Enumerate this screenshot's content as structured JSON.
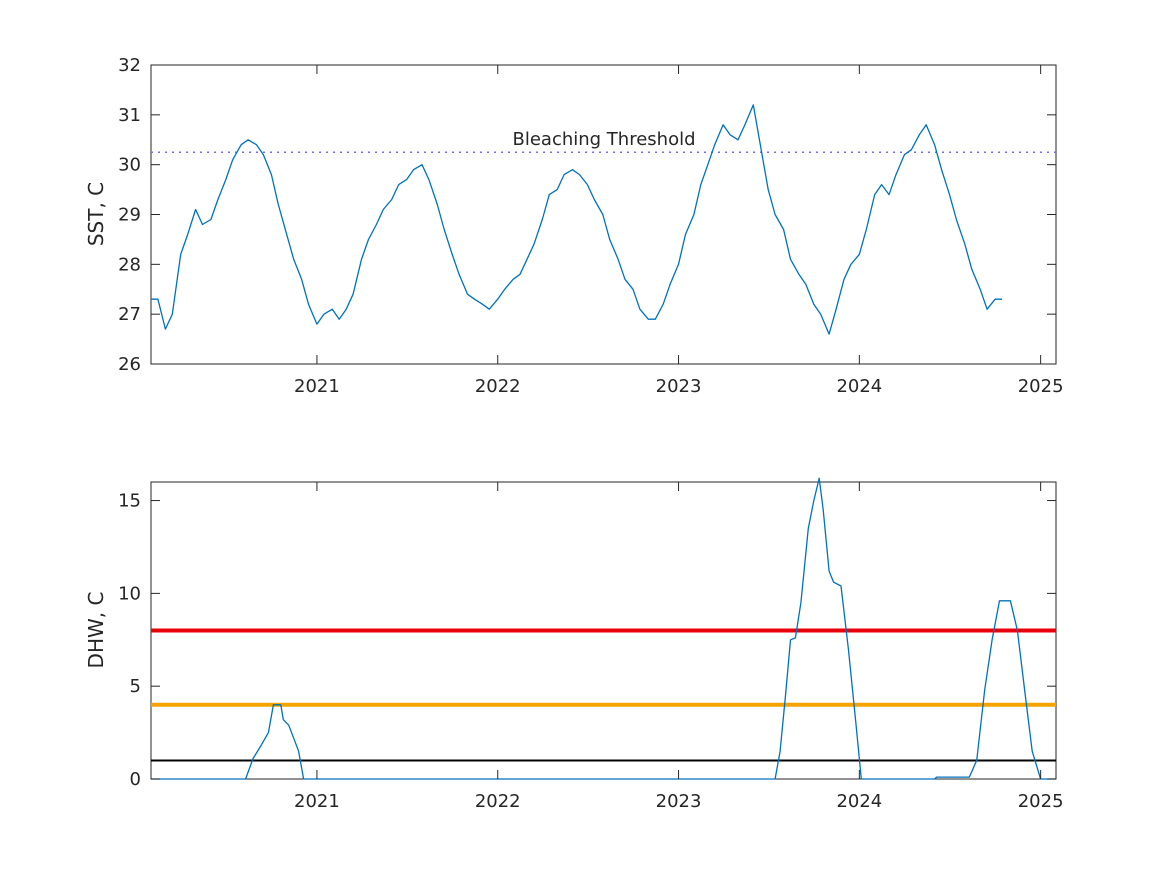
{
  "chart_data": [
    {
      "type": "line",
      "ylabel": "SST, C",
      "xlim": [
        "2020-02-01",
        "2025-02-01"
      ],
      "ylim": [
        26,
        32
      ],
      "yticks": [
        "26",
        "27",
        "28",
        "29",
        "30",
        "31",
        "32"
      ],
      "xticks": [
        "2021",
        "2022",
        "2023",
        "2024",
        "2025"
      ],
      "grid": false,
      "threshold": {
        "label": "Bleaching Threshold",
        "y": 30.25,
        "style": "dotted",
        "color": "#7b68ee"
      },
      "series": [
        {
          "color": "#0072bd",
          "points": [
            [
              "2020-02-01",
              27.3
            ],
            [
              "2020-02-15",
              27.3
            ],
            [
              "2020-03-01",
              26.7
            ],
            [
              "2020-03-15",
              27.0
            ],
            [
              "2020-04-01",
              28.2
            ],
            [
              "2020-04-15",
              28.6
            ],
            [
              "2020-05-01",
              29.1
            ],
            [
              "2020-05-15",
              28.8
            ],
            [
              "2020-06-01",
              28.9
            ],
            [
              "2020-06-15",
              29.3
            ],
            [
              "2020-07-01",
              29.7
            ],
            [
              "2020-07-15",
              30.1
            ],
            [
              "2020-08-01",
              30.4
            ],
            [
              "2020-08-15",
              30.5
            ],
            [
              "2020-09-01",
              30.4
            ],
            [
              "2020-09-15",
              30.2
            ],
            [
              "2020-10-01",
              29.8
            ],
            [
              "2020-10-15",
              29.2
            ],
            [
              "2020-11-01",
              28.6
            ],
            [
              "2020-11-15",
              28.1
            ],
            [
              "2020-12-01",
              27.7
            ],
            [
              "2020-12-15",
              27.2
            ],
            [
              "2021-01-01",
              26.8
            ],
            [
              "2021-01-15",
              27.0
            ],
            [
              "2021-02-01",
              27.1
            ],
            [
              "2021-02-15",
              26.9
            ],
            [
              "2021-03-01",
              27.1
            ],
            [
              "2021-03-15",
              27.4
            ],
            [
              "2021-04-01",
              28.1
            ],
            [
              "2021-04-15",
              28.5
            ],
            [
              "2021-05-01",
              28.8
            ],
            [
              "2021-05-15",
              29.1
            ],
            [
              "2021-06-01",
              29.3
            ],
            [
              "2021-06-15",
              29.6
            ],
            [
              "2021-07-01",
              29.7
            ],
            [
              "2021-07-15",
              29.9
            ],
            [
              "2021-08-01",
              30.0
            ],
            [
              "2021-08-15",
              29.7
            ],
            [
              "2021-09-01",
              29.2
            ],
            [
              "2021-09-15",
              28.7
            ],
            [
              "2021-10-01",
              28.2
            ],
            [
              "2021-10-15",
              27.8
            ],
            [
              "2021-11-01",
              27.4
            ],
            [
              "2021-11-15",
              27.3
            ],
            [
              "2021-12-01",
              27.2
            ],
            [
              "2021-12-15",
              27.1
            ],
            [
              "2022-01-01",
              27.3
            ],
            [
              "2022-01-15",
              27.5
            ],
            [
              "2022-02-01",
              27.7
            ],
            [
              "2022-02-15",
              27.8
            ],
            [
              "2022-03-01",
              28.1
            ],
            [
              "2022-03-15",
              28.4
            ],
            [
              "2022-04-01",
              28.9
            ],
            [
              "2022-04-15",
              29.4
            ],
            [
              "2022-05-01",
              29.5
            ],
            [
              "2022-05-15",
              29.8
            ],
            [
              "2022-06-01",
              29.9
            ],
            [
              "2022-06-15",
              29.8
            ],
            [
              "2022-07-01",
              29.6
            ],
            [
              "2022-07-15",
              29.3
            ],
            [
              "2022-08-01",
              29.0
            ],
            [
              "2022-08-15",
              28.5
            ],
            [
              "2022-09-01",
              28.1
            ],
            [
              "2022-09-15",
              27.7
            ],
            [
              "2022-10-01",
              27.5
            ],
            [
              "2022-10-15",
              27.1
            ],
            [
              "2022-11-01",
              26.9
            ],
            [
              "2022-11-15",
              26.9
            ],
            [
              "2022-12-01",
              27.2
            ],
            [
              "2022-12-15",
              27.6
            ],
            [
              "2023-01-01",
              28.0
            ],
            [
              "2023-01-15",
              28.6
            ],
            [
              "2023-02-01",
              29.0
            ],
            [
              "2023-02-15",
              29.6
            ],
            [
              "2023-03-01",
              30.0
            ],
            [
              "2023-03-15",
              30.4
            ],
            [
              "2023-04-01",
              30.8
            ],
            [
              "2023-04-15",
              30.6
            ],
            [
              "2023-05-01",
              30.5
            ],
            [
              "2023-05-15",
              30.8
            ],
            [
              "2023-06-01",
              31.2
            ],
            [
              "2023-06-15",
              30.4
            ],
            [
              "2023-07-01",
              29.5
            ],
            [
              "2023-07-15",
              29.0
            ],
            [
              "2023-08-01",
              28.7
            ],
            [
              "2023-08-15",
              28.1
            ],
            [
              "2023-09-01",
              27.8
            ],
            [
              "2023-09-15",
              27.6
            ],
            [
              "2023-10-01",
              27.2
            ],
            [
              "2023-10-15",
              27.0
            ],
            [
              "2023-11-01",
              26.6
            ],
            [
              "2023-11-15",
              27.1
            ],
            [
              "2023-12-01",
              27.7
            ],
            [
              "2023-12-15",
              28.0
            ],
            [
              "2024-01-01",
              28.2
            ],
            [
              "2024-01-15",
              28.7
            ],
            [
              "2024-02-01",
              29.4
            ],
            [
              "2024-02-15",
              29.6
            ],
            [
              "2024-03-01",
              29.4
            ],
            [
              "2024-03-15",
              29.8
            ],
            [
              "2024-04-01",
              30.2
            ],
            [
              "2024-04-15",
              30.3
            ],
            [
              "2024-05-01",
              30.6
            ],
            [
              "2024-05-15",
              30.8
            ],
            [
              "2024-06-01",
              30.4
            ],
            [
              "2024-06-15",
              29.9
            ],
            [
              "2024-07-01",
              29.4
            ],
            [
              "2024-07-15",
              28.9
            ],
            [
              "2024-08-01",
              28.4
            ],
            [
              "2024-08-15",
              27.9
            ],
            [
              "2024-09-01",
              27.5
            ],
            [
              "2024-09-15",
              27.1
            ],
            [
              "2024-10-01",
              27.3
            ],
            [
              "2024-10-15",
              27.3
            ]
          ]
        }
      ]
    },
    {
      "type": "line",
      "ylabel": "DHW, C",
      "xlim": [
        "2020-02-01",
        "2025-02-01"
      ],
      "ylim": [
        0,
        16
      ],
      "yticks": [
        "0",
        "5",
        "10",
        "15"
      ],
      "xticks": [
        "2021",
        "2022",
        "2023",
        "2024",
        "2025"
      ],
      "grid": false,
      "reference_lines": [
        {
          "y": 8,
          "color": "#e8000b"
        },
        {
          "y": 4,
          "color": "#f5a300"
        },
        {
          "y": 1,
          "color": "#000000"
        }
      ],
      "series": [
        {
          "color": "#0072bd",
          "points": [
            [
              "2020-02-01",
              0
            ],
            [
              "2020-08-10",
              0
            ],
            [
              "2020-08-25",
              1.1
            ],
            [
              "2020-09-10",
              1.8
            ],
            [
              "2020-09-25",
              2.5
            ],
            [
              "2020-10-05",
              4.0
            ],
            [
              "2020-10-20",
              4.0
            ],
            [
              "2020-10-25",
              3.2
            ],
            [
              "2020-11-05",
              2.9
            ],
            [
              "2020-11-15",
              2.2
            ],
            [
              "2020-11-25",
              1.5
            ],
            [
              "2020-12-05",
              0
            ],
            [
              "2023-07-15",
              0
            ],
            [
              "2023-07-25",
              1.5
            ],
            [
              "2023-08-05",
              4.5
            ],
            [
              "2023-08-15",
              7.5
            ],
            [
              "2023-08-25",
              7.6
            ],
            [
              "2023-09-05",
              9.5
            ],
            [
              "2023-09-20",
              13.5
            ],
            [
              "2023-10-01",
              15.0
            ],
            [
              "2023-10-12",
              16.2
            ],
            [
              "2023-10-20",
              14.5
            ],
            [
              "2023-11-01",
              11.2
            ],
            [
              "2023-11-10",
              10.6
            ],
            [
              "2023-11-25",
              10.4
            ],
            [
              "2023-12-10",
              7.0
            ],
            [
              "2023-12-25",
              3.0
            ],
            [
              "2024-01-05",
              0
            ],
            [
              "2024-06-01",
              0
            ],
            [
              "2024-06-05",
              0.1
            ],
            [
              "2024-08-10",
              0.1
            ],
            [
              "2024-08-25",
              1.0
            ],
            [
              "2024-09-10",
              4.8
            ],
            [
              "2024-09-25",
              7.5
            ],
            [
              "2024-10-10",
              9.6
            ],
            [
              "2024-11-01",
              9.6
            ],
            [
              "2024-11-15",
              8.0
            ],
            [
              "2024-12-01",
              4.5
            ],
            [
              "2024-12-15",
              1.5
            ],
            [
              "2025-01-01",
              0
            ],
            [
              "2025-02-01",
              0
            ]
          ]
        }
      ]
    }
  ]
}
